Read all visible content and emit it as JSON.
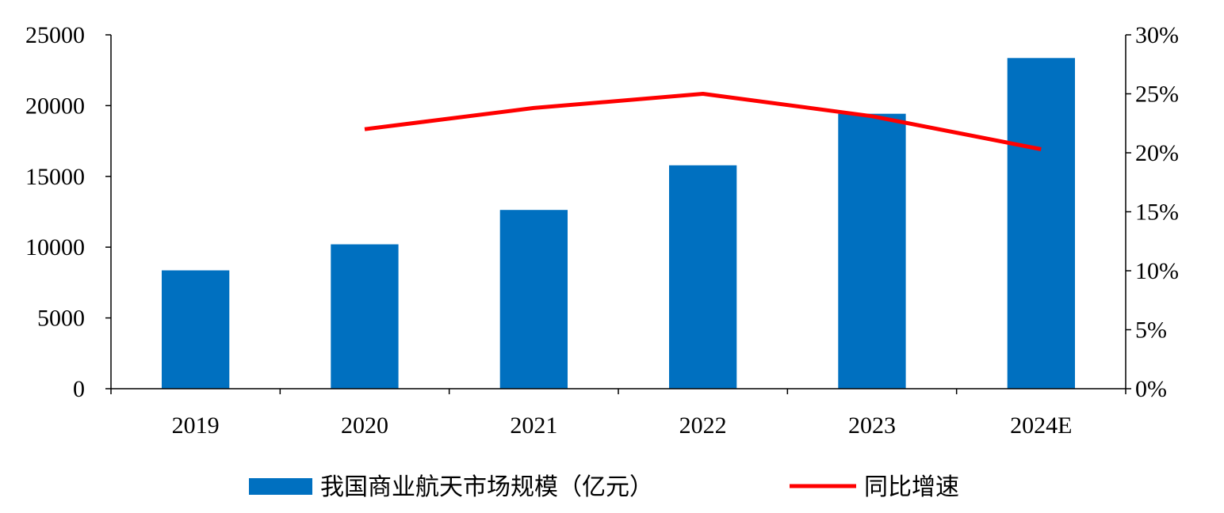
{
  "chart_data": {
    "type": "bar",
    "categories": [
      "2019",
      "2020",
      "2021",
      "2022",
      "2023",
      "2024E"
    ],
    "series": [
      {
        "name": "我国商业航天市场规模（亿元）",
        "type": "bar",
        "axis": "left",
        "color": "#0070C0",
        "values": [
          8362,
          10201,
          12630,
          15781,
          19425,
          23362
        ]
      },
      {
        "name": "同比增速",
        "type": "line",
        "axis": "right",
        "color": "#FF0000",
        "values": [
          null,
          0.22,
          0.238,
          0.25,
          0.231,
          0.203
        ]
      }
    ],
    "y_left": {
      "min": 0,
      "max": 25000,
      "step": 5000,
      "ticks": [
        "0",
        "5000",
        "10000",
        "15000",
        "20000",
        "25000"
      ]
    },
    "y_right": {
      "min": 0,
      "max": 0.3,
      "step": 0.05,
      "ticks": [
        "0%",
        "5%",
        "10%",
        "15%",
        "20%",
        "25%",
        "30%"
      ]
    },
    "grid": false,
    "legend_position": "bottom"
  }
}
